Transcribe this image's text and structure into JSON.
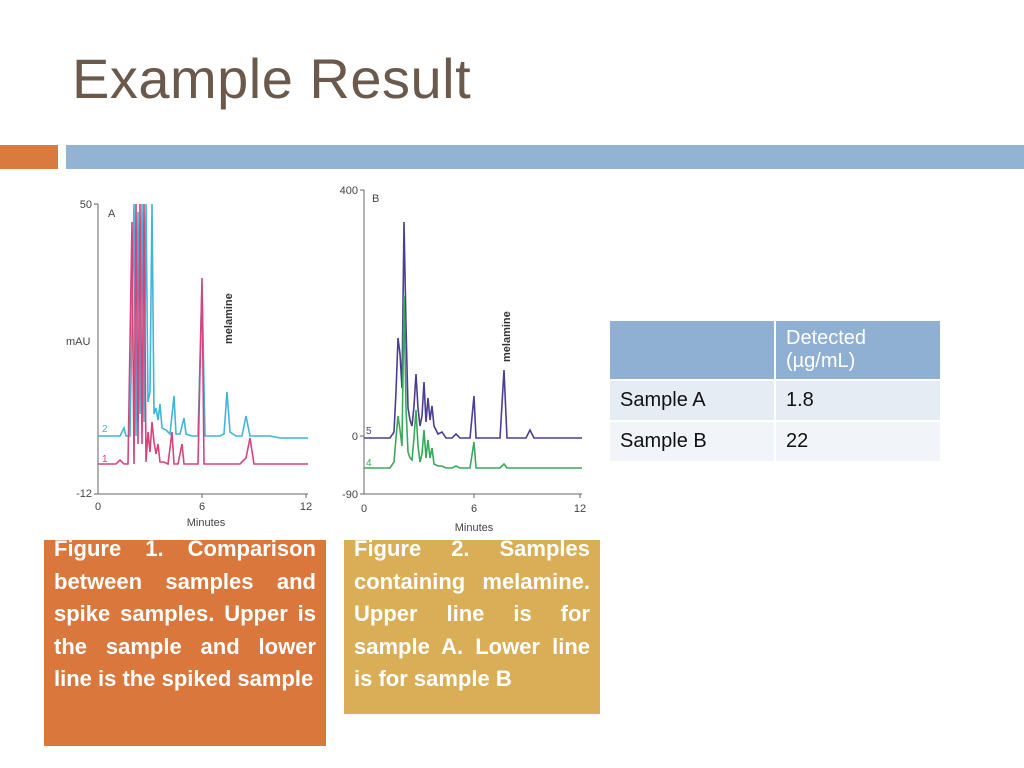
{
  "slide": {
    "title": "Example Result"
  },
  "figure_a": {
    "panel_label": "A",
    "y_label": "mAU",
    "y_ticks": [
      "50",
      "-12"
    ],
    "x_ticks": [
      "0",
      "6",
      "12"
    ],
    "x_label": "Minutes",
    "peak_label": "melamine",
    "trace_labels": [
      "2",
      "1"
    ],
    "colors": {
      "upper": "#3fb6d8",
      "lower": "#d8437b"
    }
  },
  "figure_b": {
    "panel_label": "B",
    "y_ticks": [
      "400",
      "0",
      "-90"
    ],
    "x_ticks": [
      "0",
      "6",
      "12"
    ],
    "x_label": "Minutes",
    "peak_label": "melamine",
    "trace_labels": [
      "5",
      "4"
    ],
    "colors": {
      "upper": "#4b3f93",
      "lower": "#3aa85a"
    }
  },
  "captions": {
    "fig1": "Figure 1. Comparison between samples and spike samples. Upper is the sample and lower line is the spiked sample",
    "fig2": "Figure 2. Samples containing melamine. Upper line is for sample A. Lower line is for sample B"
  },
  "table": {
    "header": [
      "",
      "Detected (µg/mL)"
    ],
    "rows": [
      [
        "Sample A",
        "1.8"
      ],
      [
        "Sample B",
        "22"
      ]
    ]
  }
}
